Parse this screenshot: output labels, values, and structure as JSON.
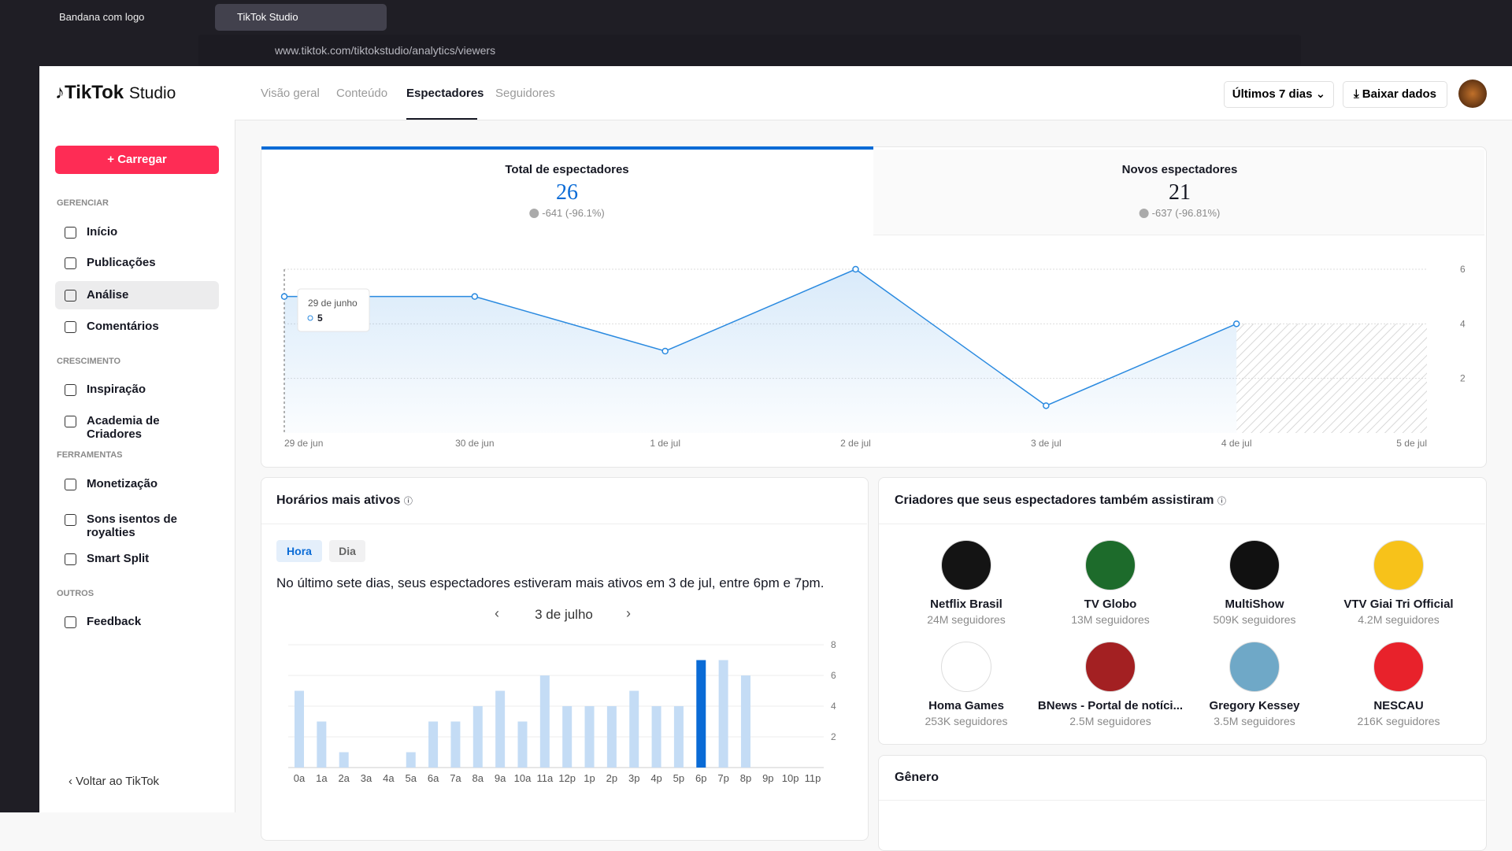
{
  "browser": {
    "tabs": [
      "Bandana com logo",
      "TikTok Studio"
    ],
    "url": "www.tiktok.com/tiktokstudio/analytics/viewers"
  },
  "sidebar": {
    "logo": "TikTok",
    "logo_suffix": "Studio",
    "upload": "+ Carregar",
    "sections": [
      {
        "title": "GERENCIAR",
        "items": [
          "Início",
          "Publicações",
          "Análise",
          "Comentários"
        ]
      },
      {
        "title": "CRESCIMENTO",
        "items": [
          "Inspiração",
          "Academia de Criadores"
        ]
      },
      {
        "title": "FERRAMENTAS",
        "items": [
          "Monetização",
          "Sons isentos de royalties",
          "Smart Split"
        ]
      },
      {
        "title": "OUTROS",
        "items": [
          "Feedback"
        ]
      }
    ],
    "back": "Voltar ao TikTok"
  },
  "header": {
    "tabs": [
      "Visão geral",
      "Conteúdo",
      "Espectadores",
      "Seguidores"
    ],
    "range": "Últimos 7 dias",
    "download": "Baixar dados"
  },
  "metrics": [
    {
      "label": "Total de espectadores",
      "value": 26,
      "change": "-641 (-96.1%)"
    },
    {
      "label": "Novos espectadores",
      "value": 21,
      "change": "-637 (-96.81%)"
    }
  ],
  "active_hours": {
    "title": "Horários mais ativos",
    "toggles": [
      "Hora",
      "Dia"
    ],
    "summary": "No último sete dias, seus espectadores estiveram mais ativos em 3 de jul, entre 6pm e 7pm.",
    "date": "3 de julho"
  },
  "creators": {
    "title": "Criadores que seus espectadores também assistiram",
    "items": [
      {
        "name": "Netflix Brasil",
        "followers": "24M seguidores"
      },
      {
        "name": "TV Globo",
        "followers": "13M seguidores"
      },
      {
        "name": "MultiShow",
        "followers": "509K seguidores"
      },
      {
        "name": "VTV Giai Tri Official",
        "followers": "4.2M seguidores"
      },
      {
        "name": "Homa Games",
        "followers": "253K seguidores"
      },
      {
        "name": "BNews - Portal de notíci...",
        "followers": "2.5M seguidores"
      },
      {
        "name": "Gregory Kessey",
        "followers": "3.5M seguidores"
      },
      {
        "name": "NESCAU",
        "followers": "216K seguidores"
      }
    ]
  },
  "gender": {
    "title": "Gênero"
  },
  "chart_data": [
    {
      "type": "line",
      "categories": [
        "29 de jun",
        "30 de jun",
        "1 de jul",
        "2 de jul",
        "3 de jul",
        "4 de jul",
        "5 de jul"
      ],
      "values": [
        5,
        5,
        3,
        6,
        1,
        4,
        null
      ],
      "color": "#2a8ae0",
      "ylim": [
        0,
        6
      ],
      "yticks": [
        2,
        4,
        6
      ],
      "grid": true,
      "tooltip": {
        "label": "29 de junho",
        "value": 5
      }
    },
    {
      "type": "bar",
      "categories": [
        "0a",
        "1a",
        "2a",
        "3a",
        "4a",
        "5a",
        "6a",
        "7a",
        "8a",
        "9a",
        "10a",
        "11a",
        "12p",
        "1p",
        "2p",
        "3p",
        "4p",
        "5p",
        "6p",
        "7p",
        "8p",
        "9p",
        "10p",
        "11p"
      ],
      "values": [
        5,
        3,
        1,
        0,
        0,
        1,
        3,
        3,
        4,
        5,
        3,
        6,
        4,
        4,
        4,
        5,
        4,
        4,
        7,
        7,
        6,
        0,
        0,
        0
      ],
      "color": "#c4dcf5",
      "highlight_color": "#0a6bd6",
      "highlight_index": 18,
      "ylim": [
        0,
        8
      ],
      "yticks": [
        2,
        4,
        6,
        8
      ],
      "grid": true
    }
  ]
}
